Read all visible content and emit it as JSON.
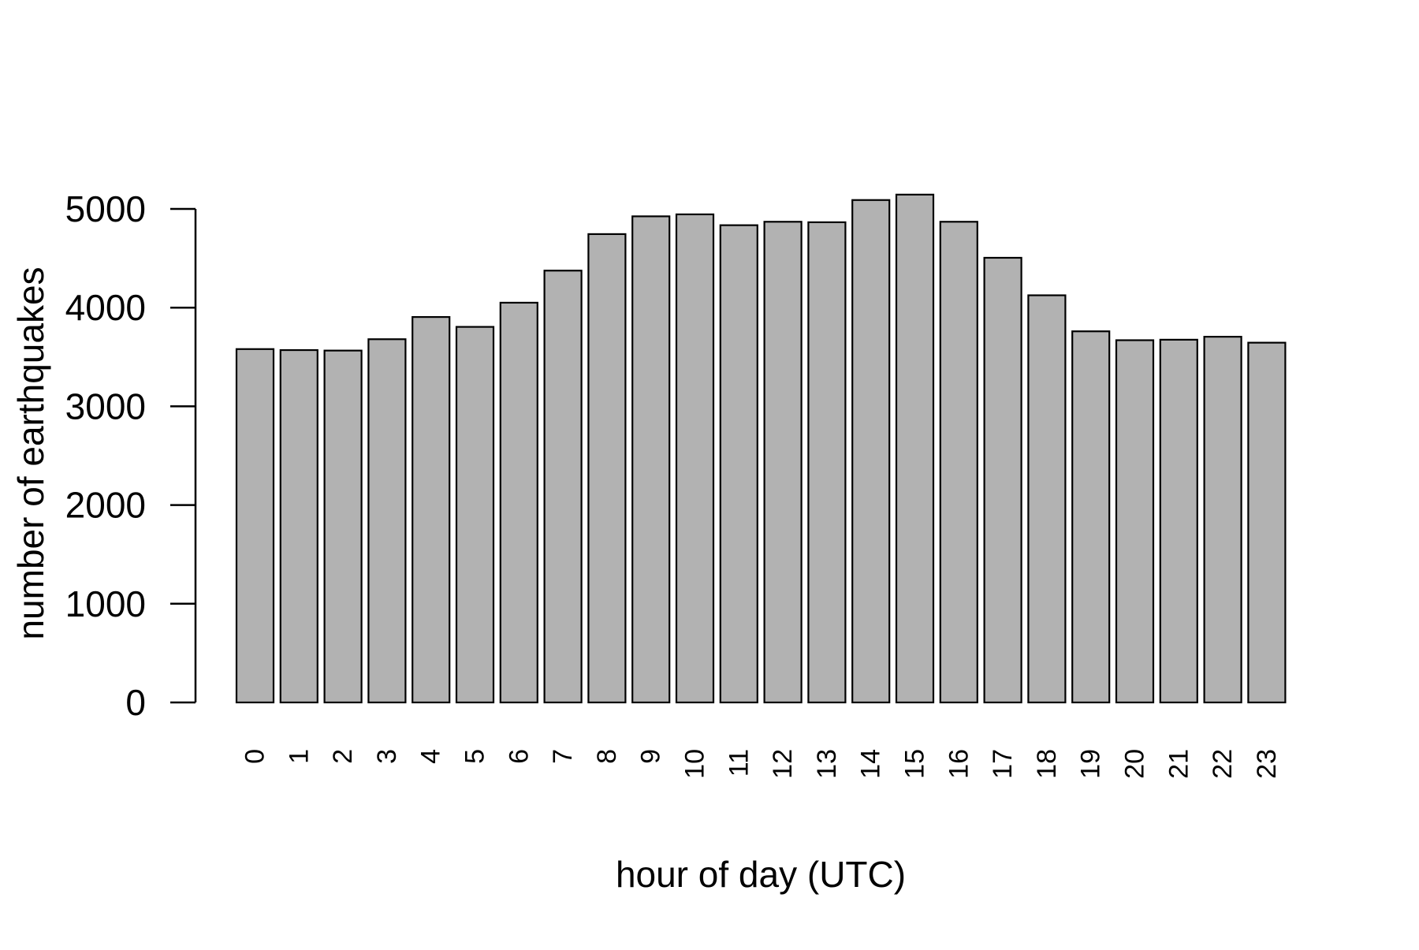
{
  "chart_data": {
    "type": "bar",
    "title": "",
    "xlabel": "hour of day (UTC)",
    "ylabel": "number of earthquakes",
    "categories": [
      "0",
      "1",
      "2",
      "3",
      "4",
      "5",
      "6",
      "7",
      "8",
      "9",
      "10",
      "11",
      "12",
      "13",
      "14",
      "15",
      "16",
      "17",
      "18",
      "19",
      "20",
      "21",
      "22",
      "23"
    ],
    "values": [
      3580,
      3570,
      3565,
      3680,
      3905,
      3805,
      4050,
      4375,
      4745,
      4925,
      4945,
      4835,
      4870,
      4865,
      5090,
      5145,
      4870,
      4505,
      4125,
      3760,
      3670,
      3675,
      3705,
      3645
    ],
    "ylim": [
      0,
      5000
    ],
    "yticks": [
      0,
      1000,
      2000,
      3000,
      4000,
      5000
    ],
    "ytick_labels": [
      "0",
      "1000",
      "2000",
      "3000",
      "4000",
      "5000"
    ],
    "grid": false,
    "legend": "none",
    "colors": {
      "bar_fill": "#b2b2b2",
      "bar_edge": "#000000",
      "axis": "#000000",
      "background": "#ffffff"
    }
  }
}
